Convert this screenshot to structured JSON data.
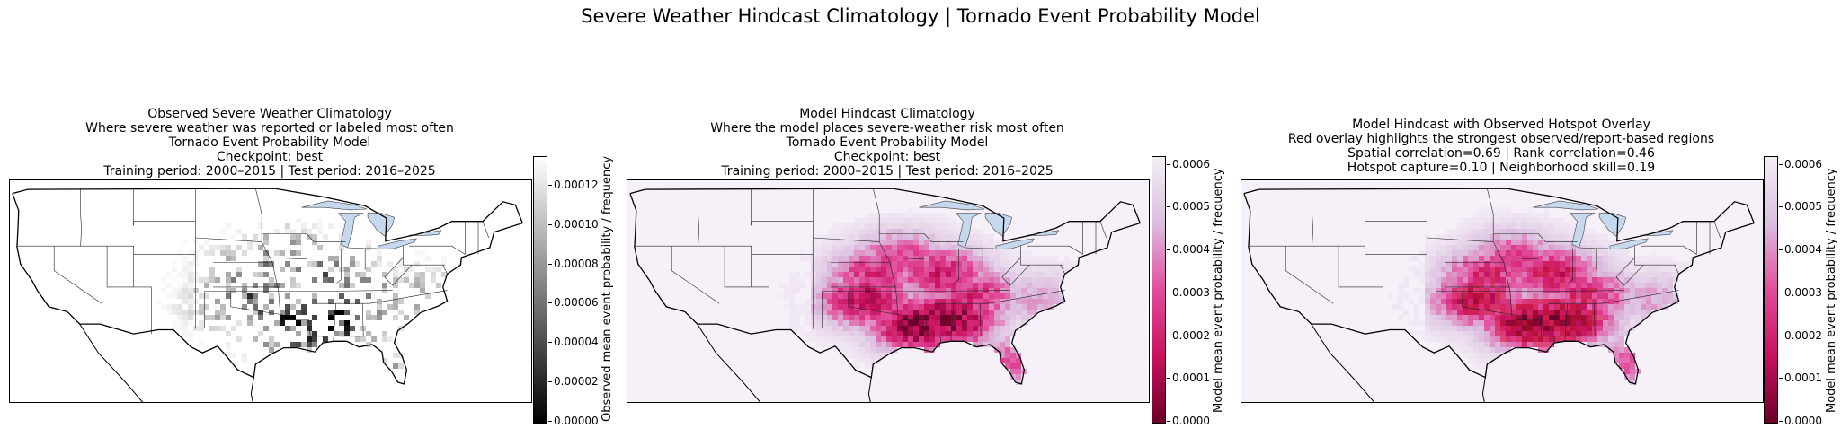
{
  "figure": {
    "suptitle": "Severe Weather Hindcast Climatology | Tornado Event Probability Model"
  },
  "colors": {
    "observed_cmap": [
      "#ffffff",
      "#000000"
    ],
    "model_cmap": [
      "#f4eef6",
      "#dcbfe0",
      "#e24c9c",
      "#c8125e",
      "#6b0028"
    ],
    "lakes": "#c6d8ee",
    "overlay": "#d21e2c"
  },
  "panels": [
    {
      "title_lines": [
        "Observed Severe Weather Climatology",
        "Where severe weather was reported or labeled most often",
        "Tornado Event Probability Model",
        "Checkpoint: best",
        "Training period: 2000–2015 | Test period: 2016–2025"
      ],
      "colorbar": {
        "label": "Observed mean event probability / frequency",
        "ticks": [
          "0.00000",
          "0.00002",
          "0.00004",
          "0.00006",
          "0.00008",
          "0.00010",
          "0.00012"
        ],
        "tick_values": [
          0,
          2e-05,
          4e-05,
          6e-05,
          8e-05,
          0.0001,
          0.00012
        ],
        "range": [
          0,
          0.000135
        ]
      }
    },
    {
      "title_lines": [
        "Model Hindcast Climatology",
        "Where the model places severe-weather risk most often",
        "Tornado Event Probability Model",
        "Checkpoint: best",
        "Training period: 2000–2015 | Test period: 2016–2025"
      ],
      "colorbar": {
        "label": "Model mean event probability / frequency",
        "ticks": [
          "0.0000",
          "0.0001",
          "0.0002",
          "0.0003",
          "0.0004",
          "0.0005",
          "0.0006"
        ],
        "tick_values": [
          0,
          0.0001,
          0.0002,
          0.0003,
          0.0004,
          0.0005,
          0.0006
        ],
        "range": [
          0,
          0.00062
        ]
      }
    },
    {
      "title_lines": [
        "Model Hindcast with Observed Hotspot Overlay",
        "Red overlay highlights the strongest observed/report-based regions",
        "Spatial correlation=0.69 | Rank correlation=0.46",
        "Hotspot capture=0.10 | Neighborhood skill=0.19"
      ],
      "colorbar": {
        "label": "Model mean event probability / frequency",
        "ticks": [
          "0.0000",
          "0.0001",
          "0.0002",
          "0.0003",
          "0.0004",
          "0.0005",
          "0.0006"
        ],
        "tick_values": [
          0,
          0.0001,
          0.0002,
          0.0003,
          0.0004,
          0.0005,
          0.0006
        ],
        "range": [
          0,
          0.00062
        ]
      }
    }
  ],
  "chart_data": {
    "type": "heatmap",
    "title": "Severe Weather Hindcast Climatology | Tornado Event Probability Model",
    "panels": 3,
    "metrics": {
      "spatial_correlation": 0.69,
      "rank_correlation": 0.46,
      "hotspot_capture": 0.1,
      "neighborhood_skill": 0.19
    },
    "observed_range": [
      0,
      0.000135
    ],
    "model_range": [
      0,
      0.00062
    ],
    "hotspots": [
      {
        "lon": -92,
        "lat": 32.5,
        "observed": 0.00013,
        "model": 0.00062
      },
      {
        "lon": -88.5,
        "lat": 33,
        "observed": 0.00012,
        "model": 0.0006
      },
      {
        "lon": -98,
        "lat": 35.5,
        "observed": 9e-05,
        "model": 0.0005
      },
      {
        "lon": -97,
        "lat": 38.5,
        "observed": 7e-05,
        "model": 0.0004
      },
      {
        "lon": -89.5,
        "lat": 38.5,
        "observed": 8e-05,
        "model": 0.00045
      },
      {
        "lon": -86,
        "lat": 36,
        "observed": 7e-05,
        "model": 0.0004
      },
      {
        "lon": -94,
        "lat": 40.5,
        "observed": 6e-05,
        "model": 0.00035
      },
      {
        "lon": -81.5,
        "lat": 28,
        "observed": 5e-05,
        "model": 0.0003
      },
      {
        "lon": -78.5,
        "lat": 35.5,
        "observed": 5e-05,
        "model": 0.0002
      }
    ]
  }
}
